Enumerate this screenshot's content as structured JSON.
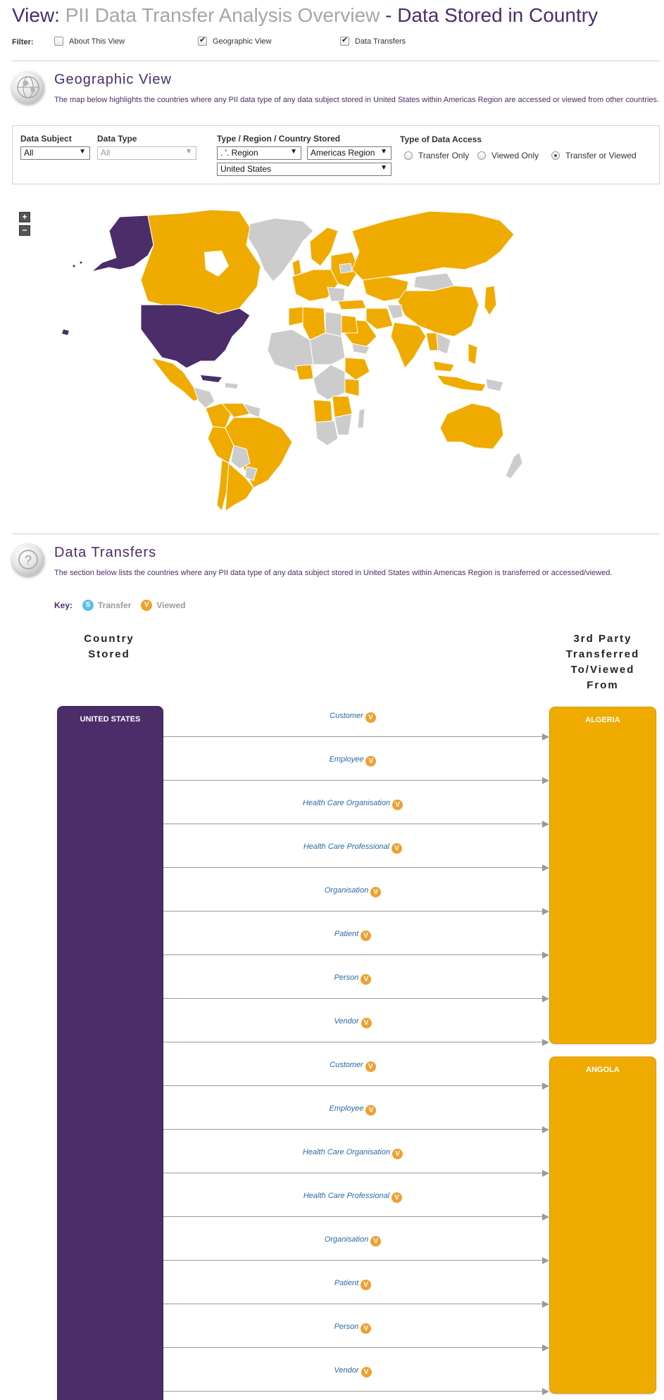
{
  "header": {
    "view_label": "View:",
    "overview": "PII Data Transfer Analysis Overview",
    "separator": "-",
    "stored": "Data Stored in Country"
  },
  "filter": {
    "label": "Filter:",
    "options": [
      {
        "label": "About This View",
        "checked": false
      },
      {
        "label": "Geographic View",
        "checked": true
      },
      {
        "label": "Data Transfers",
        "checked": true
      }
    ]
  },
  "geographic": {
    "title": "Geographic View",
    "description": "The map below highlights the countries where any PII data type of any data subject stored in United States within Americas Region are accessed or viewed from other countries.",
    "data_subject_label": "Data Subject",
    "data_subject_value": "All",
    "data_type_label": "Data Type",
    "data_type_value": "All",
    "region_label": "Type / Region / Country Stored",
    "region_type_value": ". '. Region",
    "region_value": "Americas Region",
    "country_value": "United States",
    "access_label": "Type of Data Access",
    "access_options": [
      {
        "label": "Transfer Only",
        "selected": false
      },
      {
        "label": "Viewed Only",
        "selected": false
      },
      {
        "label": "Transfer or Viewed",
        "selected": true
      }
    ],
    "zoom_in": "+",
    "zoom_out": "−",
    "colors": {
      "stored": "#4b2d6a",
      "accessed": "#f0ab00",
      "none": "#cccccc"
    }
  },
  "transfers": {
    "title": "Data Transfers",
    "description": "The section below lists the countries where any PII data type of any data subject stored in United States within Americas Region is transferred or accessed/viewed.",
    "key_label": "Key:",
    "key_transfer": "Transfer",
    "key_transfer_badge": "S",
    "key_viewed": "Viewed",
    "key_viewed_badge": "V",
    "col_stored": "Country Stored",
    "col_third_party": "3rd Party Transferred To/Viewed From",
    "stored_country": "UNITED STATES",
    "destinations": [
      {
        "country": "ALGERIA",
        "subjects": [
          "Customer",
          "Employee",
          "Health Care Organisation",
          "Health Care Professional",
          "Organisation",
          "Patient",
          "Person",
          "Vendor"
        ]
      },
      {
        "country": "ANGOLA",
        "subjects": [
          "Customer",
          "Employee",
          "Health Care Organisation",
          "Health Care Professional",
          "Organisation",
          "Patient",
          "Person",
          "Vendor"
        ]
      }
    ]
  }
}
